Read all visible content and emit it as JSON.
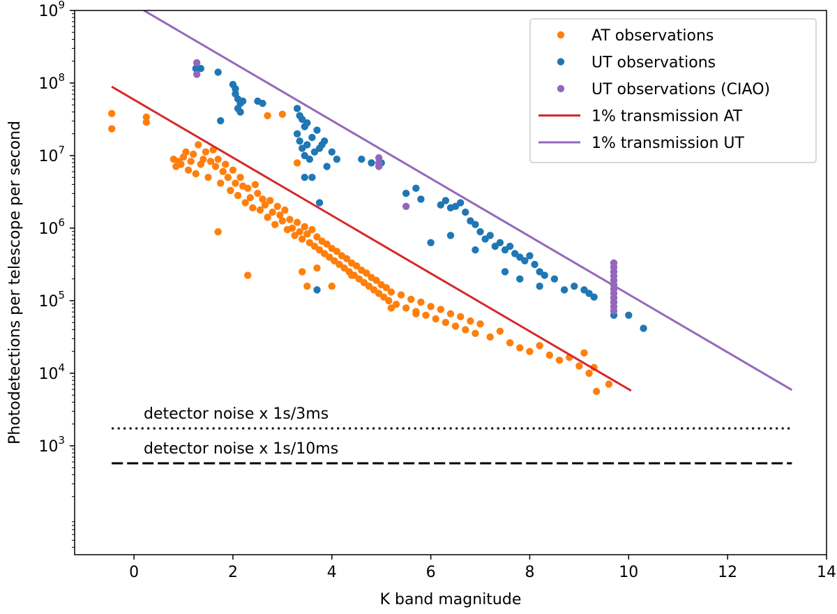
{
  "chart_data": {
    "type": "scatter",
    "xlabel": "K band magnitude",
    "ylabel": "Photodetections per telescope per second",
    "xlim": [
      -1.2,
      14
    ],
    "ylim_log10": [
      1.5,
      9
    ],
    "y_scale": "log",
    "x_ticks": [
      "0",
      "2",
      "4",
      "6",
      "8",
      "10",
      "12",
      "14"
    ],
    "y_ticks": [
      {
        "base": "10",
        "exp": "3"
      },
      {
        "base": "10",
        "exp": "4"
      },
      {
        "base": "10",
        "exp": "5"
      },
      {
        "base": "10",
        "exp": "6"
      },
      {
        "base": "10",
        "exp": "7"
      },
      {
        "base": "10",
        "exp": "8"
      },
      {
        "base": "10",
        "exp": "9"
      }
    ],
    "legend_placement": "top-right",
    "colors": {
      "at": "#ff7f0e",
      "ut": "#1f77b4",
      "ciao": "#9467bd",
      "line_at": "#d62728",
      "line_ut": "#9467bd"
    },
    "legend": [
      {
        "label": "AT observations",
        "kind": "marker",
        "color": "#ff7f0e"
      },
      {
        "label": "UT observations",
        "kind": "marker",
        "color": "#1f77b4"
      },
      {
        "label": "UT observations (CIAO)",
        "kind": "marker",
        "color": "#9467bd"
      },
      {
        "label": "1% transmission AT",
        "kind": "line",
        "color": "#d62728"
      },
      {
        "label": "1% transmission UT",
        "kind": "line",
        "color": "#9467bd"
      }
    ],
    "lines": [
      {
        "name": "1% transmission AT",
        "color": "#d62728",
        "style": "solid",
        "x": [
          -0.45,
          10.05
        ],
        "y_log10": [
          7.95,
          3.76
        ]
      },
      {
        "name": "1% transmission UT",
        "color": "#9467bd",
        "style": "solid",
        "x": [
          0.2,
          13.3
        ],
        "y_log10": [
          9.0,
          3.77
        ]
      }
    ],
    "hlines": [
      {
        "label": "detector noise x 1s/3ms",
        "y_log10": 3.24,
        "x": [
          -0.45,
          13.3
        ],
        "style": "dotted",
        "color": "#000000"
      },
      {
        "label": "detector noise x 1s/10ms",
        "y_log10": 2.76,
        "x": [
          -0.45,
          13.3
        ],
        "style": "dashed",
        "color": "#000000"
      }
    ],
    "series": [
      {
        "name": "AT observations",
        "color": "#ff7f0e",
        "points": [
          [
            -0.45,
            7.58
          ],
          [
            -0.45,
            7.37
          ],
          [
            0.25,
            7.53
          ],
          [
            0.25,
            7.46
          ],
          [
            0.8,
            6.95
          ],
          [
            0.85,
            6.85
          ],
          [
            0.9,
            6.92
          ],
          [
            0.95,
            6.88
          ],
          [
            1.0,
            6.98
          ],
          [
            1.05,
            7.05
          ],
          [
            1.1,
            6.8
          ],
          [
            1.15,
            6.92
          ],
          [
            1.2,
            7.02
          ],
          [
            1.25,
            6.75
          ],
          [
            1.3,
            7.15
          ],
          [
            1.35,
            6.88
          ],
          [
            1.4,
            6.95
          ],
          [
            1.45,
            7.05
          ],
          [
            1.5,
            6.7
          ],
          [
            1.55,
            6.92
          ],
          [
            1.6,
            7.08
          ],
          [
            1.65,
            6.85
          ],
          [
            1.7,
            6.95
          ],
          [
            1.75,
            6.62
          ],
          [
            1.8,
            6.78
          ],
          [
            1.85,
            6.88
          ],
          [
            1.9,
            6.7
          ],
          [
            1.95,
            6.52
          ],
          [
            2.0,
            6.8
          ],
          [
            2.05,
            6.62
          ],
          [
            2.1,
            6.45
          ],
          [
            2.15,
            6.7
          ],
          [
            2.2,
            6.58
          ],
          [
            2.25,
            6.35
          ],
          [
            2.3,
            6.55
          ],
          [
            2.35,
            6.42
          ],
          [
            2.4,
            6.28
          ],
          [
            2.45,
            6.6
          ],
          [
            2.5,
            6.48
          ],
          [
            2.55,
            6.25
          ],
          [
            2.6,
            6.4
          ],
          [
            2.65,
            6.32
          ],
          [
            2.7,
            6.15
          ],
          [
            2.75,
            6.38
          ],
          [
            2.8,
            6.22
          ],
          [
            2.85,
            6.05
          ],
          [
            2.9,
            6.3
          ],
          [
            2.95,
            6.18
          ],
          [
            3.0,
            6.1
          ],
          [
            3.05,
            6.25
          ],
          [
            3.1,
            5.98
          ],
          [
            3.15,
            6.12
          ],
          [
            3.2,
            6.0
          ],
          [
            3.25,
            5.9
          ],
          [
            3.3,
            6.08
          ],
          [
            3.35,
            5.95
          ],
          [
            3.4,
            5.85
          ],
          [
            3.45,
            6.02
          ],
          [
            3.5,
            5.92
          ],
          [
            3.55,
            5.8
          ],
          [
            3.6,
            5.98
          ],
          [
            3.65,
            5.75
          ],
          [
            3.7,
            5.88
          ],
          [
            3.75,
            5.7
          ],
          [
            3.8,
            5.82
          ],
          [
            3.85,
            5.65
          ],
          [
            3.9,
            5.78
          ],
          [
            3.95,
            5.6
          ],
          [
            4.0,
            5.72
          ],
          [
            4.05,
            5.55
          ],
          [
            4.1,
            5.68
          ],
          [
            4.15,
            5.5
          ],
          [
            4.2,
            5.62
          ],
          [
            4.25,
            5.45
          ],
          [
            4.3,
            5.58
          ],
          [
            4.35,
            5.4
          ],
          [
            4.4,
            5.52
          ],
          [
            4.45,
            5.35
          ],
          [
            4.5,
            5.48
          ],
          [
            4.55,
            5.3
          ],
          [
            4.6,
            5.42
          ],
          [
            4.65,
            5.25
          ],
          [
            4.7,
            5.38
          ],
          [
            4.75,
            5.2
          ],
          [
            4.8,
            5.32
          ],
          [
            4.85,
            5.15
          ],
          [
            4.9,
            5.28
          ],
          [
            4.95,
            5.1
          ],
          [
            5.0,
            5.22
          ],
          [
            5.05,
            5.05
          ],
          [
            5.1,
            5.18
          ],
          [
            5.15,
            5.0
          ],
          [
            5.2,
            5.12
          ],
          [
            5.3,
            4.95
          ],
          [
            5.4,
            5.08
          ],
          [
            5.5,
            4.9
          ],
          [
            5.6,
            5.02
          ],
          [
            5.7,
            4.85
          ],
          [
            5.8,
            4.98
          ],
          [
            5.9,
            4.8
          ],
          [
            6.0,
            4.92
          ],
          [
            6.1,
            4.75
          ],
          [
            6.2,
            4.88
          ],
          [
            6.3,
            4.7
          ],
          [
            6.4,
            4.82
          ],
          [
            6.5,
            4.65
          ],
          [
            6.6,
            4.78
          ],
          [
            6.7,
            4.6
          ],
          [
            6.8,
            4.72
          ],
          [
            6.9,
            4.55
          ],
          [
            7.0,
            4.68
          ],
          [
            7.2,
            4.5
          ],
          [
            7.4,
            4.58
          ],
          [
            7.6,
            4.42
          ],
          [
            7.8,
            4.35
          ],
          [
            8.0,
            4.3
          ],
          [
            8.2,
            4.38
          ],
          [
            8.4,
            4.25
          ],
          [
            8.6,
            4.18
          ],
          [
            8.8,
            4.22
          ],
          [
            9.0,
            4.1
          ],
          [
            9.1,
            4.28
          ],
          [
            9.2,
            4.0
          ],
          [
            9.3,
            4.08
          ],
          [
            9.35,
            3.75
          ],
          [
            9.6,
            3.85
          ],
          [
            1.7,
            5.95
          ],
          [
            2.3,
            5.35
          ],
          [
            2.7,
            7.55
          ],
          [
            3.0,
            7.57
          ],
          [
            3.3,
            6.9
          ],
          [
            3.4,
            5.4
          ],
          [
            3.5,
            5.2
          ],
          [
            3.7,
            5.45
          ],
          [
            4.0,
            5.2
          ],
          [
            4.4,
            5.35
          ],
          [
            5.2,
            4.9
          ],
          [
            5.7,
            4.82
          ]
        ]
      },
      {
        "name": "UT observations",
        "color": "#1f77b4",
        "points": [
          [
            1.25,
            8.2
          ],
          [
            1.35,
            8.2
          ],
          [
            1.7,
            8.15
          ],
          [
            1.75,
            7.48
          ],
          [
            2.0,
            7.98
          ],
          [
            2.05,
            7.92
          ],
          [
            2.05,
            7.85
          ],
          [
            2.1,
            7.78
          ],
          [
            2.15,
            7.72
          ],
          [
            2.1,
            7.65
          ],
          [
            2.15,
            7.6
          ],
          [
            2.2,
            7.75
          ],
          [
            2.5,
            7.75
          ],
          [
            2.6,
            7.72
          ],
          [
            3.3,
            7.65
          ],
          [
            3.35,
            7.55
          ],
          [
            3.4,
            7.5
          ],
          [
            3.45,
            7.4
          ],
          [
            3.5,
            7.45
          ],
          [
            3.3,
            7.3
          ],
          [
            3.35,
            7.2
          ],
          [
            3.4,
            7.1
          ],
          [
            3.45,
            7.0
          ],
          [
            3.5,
            7.15
          ],
          [
            3.55,
            6.95
          ],
          [
            3.6,
            7.25
          ],
          [
            3.65,
            7.05
          ],
          [
            3.7,
            7.35
          ],
          [
            3.75,
            7.1
          ],
          [
            3.8,
            7.15
          ],
          [
            3.85,
            7.2
          ],
          [
            3.9,
            6.85
          ],
          [
            4.0,
            7.05
          ],
          [
            4.1,
            6.95
          ],
          [
            3.6,
            6.7
          ],
          [
            3.45,
            6.7
          ],
          [
            3.75,
            6.35
          ],
          [
            3.7,
            5.15
          ],
          [
            4.6,
            6.95
          ],
          [
            4.8,
            6.9
          ],
          [
            5.0,
            6.9
          ],
          [
            5.5,
            6.48
          ],
          [
            5.7,
            6.55
          ],
          [
            5.8,
            6.4
          ],
          [
            6.0,
            5.8
          ],
          [
            6.2,
            6.32
          ],
          [
            6.3,
            6.38
          ],
          [
            6.4,
            6.28
          ],
          [
            6.5,
            6.3
          ],
          [
            6.6,
            6.35
          ],
          [
            6.7,
            6.22
          ],
          [
            6.8,
            6.1
          ],
          [
            6.9,
            6.05
          ],
          [
            7.0,
            5.95
          ],
          [
            7.1,
            5.85
          ],
          [
            7.2,
            5.9
          ],
          [
            7.3,
            5.75
          ],
          [
            7.4,
            5.8
          ],
          [
            7.5,
            5.7
          ],
          [
            7.6,
            5.75
          ],
          [
            7.7,
            5.65
          ],
          [
            7.8,
            5.6
          ],
          [
            7.9,
            5.55
          ],
          [
            8.0,
            5.62
          ],
          [
            8.1,
            5.5
          ],
          [
            8.2,
            5.4
          ],
          [
            8.3,
            5.35
          ],
          [
            8.5,
            5.3
          ],
          [
            8.7,
            5.15
          ],
          [
            8.9,
            5.2
          ],
          [
            9.1,
            5.15
          ],
          [
            9.2,
            5.1
          ],
          [
            9.3,
            5.05
          ],
          [
            9.7,
            4.8
          ],
          [
            10.0,
            4.8
          ],
          [
            10.3,
            4.62
          ],
          [
            6.4,
            5.9
          ],
          [
            6.9,
            5.7
          ],
          [
            7.5,
            5.4
          ],
          [
            7.8,
            5.3
          ],
          [
            8.2,
            5.2
          ]
        ]
      },
      {
        "name": "UT observations (CIAO)",
        "color": "#9467bd",
        "points": [
          [
            1.27,
            8.28
          ],
          [
            1.27,
            8.12
          ],
          [
            4.95,
            6.97
          ],
          [
            4.95,
            6.9
          ],
          [
            4.95,
            6.85
          ],
          [
            5.5,
            6.3
          ],
          [
            9.7,
            5.52
          ],
          [
            9.7,
            5.46
          ],
          [
            9.7,
            5.4
          ],
          [
            9.7,
            5.34
          ],
          [
            9.7,
            5.28
          ],
          [
            9.7,
            5.22
          ],
          [
            9.7,
            5.16
          ],
          [
            9.7,
            5.1
          ],
          [
            9.7,
            5.04
          ],
          [
            9.7,
            4.98
          ],
          [
            9.7,
            4.92
          ],
          [
            9.7,
            4.86
          ]
        ]
      }
    ]
  }
}
